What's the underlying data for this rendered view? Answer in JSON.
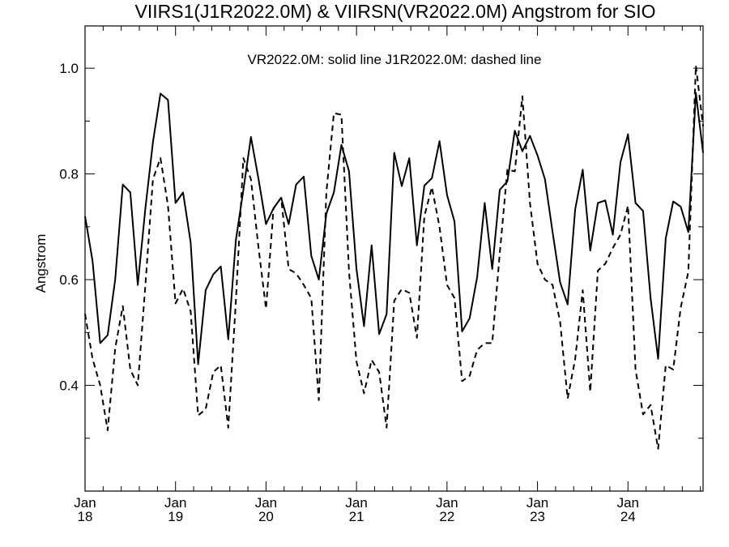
{
  "chart_data": {
    "type": "line",
    "title": "VIIRS1(J1R2022.0M) & VIIRSN(VR2022.0M)  Angstrom for SIO",
    "annotation": "VR2022.0M: solid line   J1R2022.0M: dashed line",
    "ylabel": "Angstrom",
    "xlabel": "",
    "xlim": [
      2018.0,
      2024.83
    ],
    "ylim": [
      0.2,
      1.08
    ],
    "y_ticks": [
      "0.4",
      "0.6",
      "0.8",
      "1.0"
    ],
    "y_tick_values": [
      0.4,
      0.6,
      0.8,
      1.0
    ],
    "y_minor_ticks": [
      0.3,
      0.5,
      0.7,
      0.9
    ],
    "x_ticks": [
      {
        "month": "Jan",
        "year": "18",
        "value": 2018.0
      },
      {
        "month": "Jan",
        "year": "19",
        "value": 2019.0
      },
      {
        "month": "Jan",
        "year": "20",
        "value": 2020.0
      },
      {
        "month": "Jan",
        "year": "21",
        "value": 2021.0
      },
      {
        "month": "Jan",
        "year": "22",
        "value": 2022.0
      },
      {
        "month": "Jan",
        "year": "23",
        "value": 2023.0
      },
      {
        "month": "Jan",
        "year": "24",
        "value": 2024.0
      }
    ],
    "x_minor_per_year": 5,
    "series": [
      {
        "name": "VR2022.0M",
        "style": "solid",
        "color": "#000000",
        "x": [
          2018.0,
          2018.083,
          2018.167,
          2018.25,
          2018.333,
          2018.417,
          2018.5,
          2018.583,
          2018.667,
          2018.75,
          2018.833,
          2018.917,
          2019.0,
          2019.083,
          2019.167,
          2019.25,
          2019.333,
          2019.417,
          2019.5,
          2019.583,
          2019.667,
          2019.75,
          2019.833,
          2019.917,
          2020.0,
          2020.083,
          2020.167,
          2020.25,
          2020.333,
          2020.417,
          2020.5,
          2020.583,
          2020.667,
          2020.75,
          2020.833,
          2020.917,
          2021.0,
          2021.083,
          2021.167,
          2021.25,
          2021.333,
          2021.417,
          2021.5,
          2021.583,
          2021.667,
          2021.75,
          2021.833,
          2021.917,
          2022.0,
          2022.083,
          2022.167,
          2022.25,
          2022.333,
          2022.417,
          2022.5,
          2022.583,
          2022.667,
          2022.75,
          2022.833,
          2022.917,
          2023.0,
          2023.083,
          2023.167,
          2023.25,
          2023.333,
          2023.417,
          2023.5,
          2023.583,
          2023.667,
          2023.75,
          2023.833,
          2023.917,
          2024.0,
          2024.083,
          2024.167,
          2024.25,
          2024.333,
          2024.417,
          2024.5,
          2024.583,
          2024.667,
          2024.75,
          2024.83
        ],
        "values": [
          0.72,
          0.635,
          0.48,
          0.495,
          0.6,
          0.78,
          0.765,
          0.59,
          0.735,
          0.86,
          0.952,
          0.94,
          0.745,
          0.765,
          0.67,
          0.44,
          0.58,
          0.61,
          0.625,
          0.487,
          0.675,
          0.77,
          0.87,
          0.79,
          0.705,
          0.735,
          0.755,
          0.705,
          0.78,
          0.795,
          0.645,
          0.6,
          0.725,
          0.765,
          0.855,
          0.805,
          0.62,
          0.512,
          0.665,
          0.497,
          0.535,
          0.84,
          0.777,
          0.83,
          0.665,
          0.778,
          0.792,
          0.862,
          0.76,
          0.71,
          0.502,
          0.527,
          0.605,
          0.745,
          0.62,
          0.77,
          0.786,
          0.882,
          0.843,
          0.872,
          0.835,
          0.79,
          0.69,
          0.595,
          0.553,
          0.733,
          0.808,
          0.655,
          0.745,
          0.75,
          0.685,
          0.822,
          0.875,
          0.745,
          0.73,
          0.565,
          0.45,
          0.678,
          0.748,
          0.738,
          0.69,
          0.953,
          0.84
        ]
      },
      {
        "name": "J1R2022.0M",
        "style": "dashed",
        "color": "#000000",
        "x": [
          2018.0,
          2018.083,
          2018.167,
          2018.25,
          2018.333,
          2018.417,
          2018.5,
          2018.583,
          2018.667,
          2018.75,
          2018.833,
          2018.917,
          2019.0,
          2019.083,
          2019.167,
          2019.25,
          2019.333,
          2019.417,
          2019.5,
          2019.583,
          2019.667,
          2019.75,
          2019.833,
          2019.917,
          2020.0,
          2020.083,
          2020.167,
          2020.25,
          2020.333,
          2020.417,
          2020.5,
          2020.583,
          2020.667,
          2020.75,
          2020.833,
          2020.917,
          2021.0,
          2021.083,
          2021.167,
          2021.25,
          2021.333,
          2021.417,
          2021.5,
          2021.583,
          2021.667,
          2021.75,
          2021.833,
          2021.917,
          2022.0,
          2022.083,
          2022.167,
          2022.25,
          2022.333,
          2022.417,
          2022.5,
          2022.583,
          2022.667,
          2022.75,
          2022.833,
          2022.917,
          2023.0,
          2023.083,
          2023.167,
          2023.25,
          2023.333,
          2023.417,
          2023.5,
          2023.583,
          2023.667,
          2023.75,
          2023.833,
          2023.917,
          2024.0,
          2024.083,
          2024.167,
          2024.25,
          2024.333,
          2024.417,
          2024.5,
          2024.583,
          2024.667,
          2024.75,
          2024.83
        ],
        "values": [
          0.535,
          0.45,
          0.4,
          0.315,
          0.47,
          0.55,
          0.43,
          0.4,
          0.59,
          0.79,
          0.83,
          0.74,
          0.555,
          0.583,
          0.54,
          0.343,
          0.355,
          0.425,
          0.438,
          0.32,
          0.56,
          0.83,
          0.79,
          0.66,
          0.545,
          0.735,
          0.755,
          0.62,
          0.612,
          0.59,
          0.565,
          0.372,
          0.765,
          0.915,
          0.912,
          0.615,
          0.445,
          0.385,
          0.448,
          0.425,
          0.32,
          0.56,
          0.582,
          0.575,
          0.49,
          0.72,
          0.775,
          0.7,
          0.59,
          0.565,
          0.408,
          0.418,
          0.467,
          0.48,
          0.48,
          0.65,
          0.808,
          0.805,
          0.947,
          0.745,
          0.63,
          0.6,
          0.59,
          0.52,
          0.375,
          0.45,
          0.58,
          0.388,
          0.617,
          0.63,
          0.66,
          0.685,
          0.74,
          0.43,
          0.345,
          0.363,
          0.28,
          0.438,
          0.43,
          0.547,
          0.615,
          1.005,
          0.89
        ]
      }
    ]
  }
}
